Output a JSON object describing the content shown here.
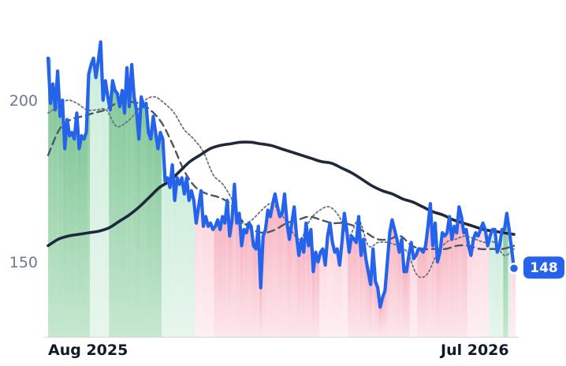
{
  "chart_data": {
    "type": "line",
    "title": "",
    "xlabel": "",
    "ylabel": "",
    "ylim": [
      125,
      225
    ],
    "y_ticks": [
      150,
      200
    ],
    "x_ticks": [
      "Aug 2025",
      "Jul 2026"
    ],
    "grid": false,
    "legend": "none",
    "price_last_label": "148",
    "background_regimes": [
      {
        "from": 0,
        "to": 12,
        "regime": "up-strong"
      },
      {
        "from": 12,
        "to": 17,
        "regime": "up-weak"
      },
      {
        "from": 17,
        "to": 32,
        "regime": "up-strong"
      },
      {
        "from": 32,
        "to": 41,
        "regime": "up-weak"
      },
      {
        "from": 41,
        "to": 47,
        "regime": "down-weak"
      },
      {
        "from": 47,
        "to": 76,
        "regime": "down-strong"
      },
      {
        "from": 76,
        "to": 84,
        "regime": "down-weak"
      },
      {
        "from": 84,
        "to": 102,
        "regime": "down-strong"
      },
      {
        "from": 102,
        "to": 104,
        "regime": "down-weak"
      },
      {
        "from": 104,
        "to": 118,
        "regime": "down-strong"
      },
      {
        "from": 118,
        "to": 124,
        "regime": "down-weak"
      },
      {
        "from": 124,
        "to": 128,
        "regime": "up-weak"
      },
      {
        "from": 128,
        "to": 129,
        "regime": "up-strong"
      },
      {
        "from": 129,
        "to": 130,
        "regime": "up-weak"
      },
      {
        "from": 130,
        "to": 131,
        "regime": "down-weak"
      }
    ],
    "series": [
      {
        "role": "price",
        "color": "#2563eb",
        "values": [
          213,
          199,
          205,
          197,
          209,
          195,
          200,
          185,
          194,
          189,
          190,
          188,
          196,
          185,
          189,
          188,
          190,
          208,
          211,
          213,
          207,
          212,
          218,
          200,
          206,
          201,
          197,
          206,
          203,
          202,
          198,
          203,
          196,
          210,
          198,
          211,
          201,
          197,
          188,
          201,
          198,
          199,
          190,
          188,
          195,
          190,
          185,
          190,
          188,
          175,
          176,
          173,
          180,
          169,
          176,
          174,
          176,
          171,
          176,
          169,
          172,
          169,
          162,
          167,
          172,
          161,
          164,
          161,
          162,
          160,
          161,
          163,
          160,
          164,
          162,
          169,
          158,
          163,
          174,
          162,
          165,
          155,
          160,
          159,
          162,
          161,
          155,
          154,
          161,
          142,
          158,
          160,
          166,
          164,
          168,
          171,
          167,
          164,
          165,
          171,
          162,
          157,
          162,
          167,
          158,
          152,
          157,
          153,
          162,
          155,
          160,
          147,
          153,
          150,
          153,
          154,
          149,
          158,
          162,
          156,
          153,
          154,
          149,
          156,
          165,
          160,
          153,
          158,
          157,
          156,
          164,
          152,
          157,
          151,
          147,
          143,
          154,
          144,
          142,
          136,
          139,
          141,
          150,
          159,
          163,
          160,
          157,
          153,
          157,
          147,
          147,
          152,
          156,
          151,
          152,
          154,
          154,
          153,
          155,
          161,
          168,
          155,
          162,
          150,
          153,
          159,
          158,
          159,
          164,
          157,
          161,
          159,
          167,
          164,
          159,
          160,
          155,
          152,
          157,
          159,
          158,
          160,
          162,
          160,
          155,
          158,
          160,
          160,
          153,
          155,
          160,
          160,
          165,
          160,
          154,
          148
        ]
      },
      {
        "role": "moving-average-long",
        "color": "#1e293b",
        "values": [
          155,
          157,
          158,
          158.5,
          159,
          159.5,
          160.5,
          162.5,
          164.5,
          167,
          170,
          173,
          175,
          178,
          181,
          183,
          185,
          186,
          186.5,
          187,
          187,
          186.5,
          186,
          185,
          184,
          183,
          182,
          181,
          180.5,
          179,
          177.5,
          175.5,
          173.5,
          172,
          171,
          169.5,
          168.5,
          167,
          165.5,
          164.5,
          163,
          162,
          161,
          160,
          159.5,
          159,
          158.5
        ]
      },
      {
        "role": "moving-average-mid",
        "color": "#4b5563",
        "values": [
          183,
          191,
          194,
          195,
          196,
          197,
          199,
          199.5,
          199,
          197,
          193,
          186,
          178,
          173,
          171,
          170,
          168,
          163,
          160,
          159,
          160,
          162,
          163,
          164,
          163,
          162,
          162,
          161,
          159,
          157,
          157,
          158,
          155,
          154,
          154,
          154,
          155,
          155,
          154,
          154,
          154,
          155
        ]
      },
      {
        "role": "moving-average-short",
        "color": "#6b7280",
        "values": [
          196,
          198,
          200,
          199,
          197,
          197,
          197,
          192,
          193,
          196,
          200,
          201,
          199,
          196,
          191,
          188,
          184,
          177,
          174,
          169,
          162,
          163,
          166,
          168,
          165,
          160,
          157,
          163,
          166,
          167,
          164,
          158,
          163,
          155,
          156,
          156,
          155,
          153,
          146,
          146,
          152,
          156,
          157,
          158,
          157,
          156,
          156,
          152,
          154
        ]
      }
    ]
  }
}
